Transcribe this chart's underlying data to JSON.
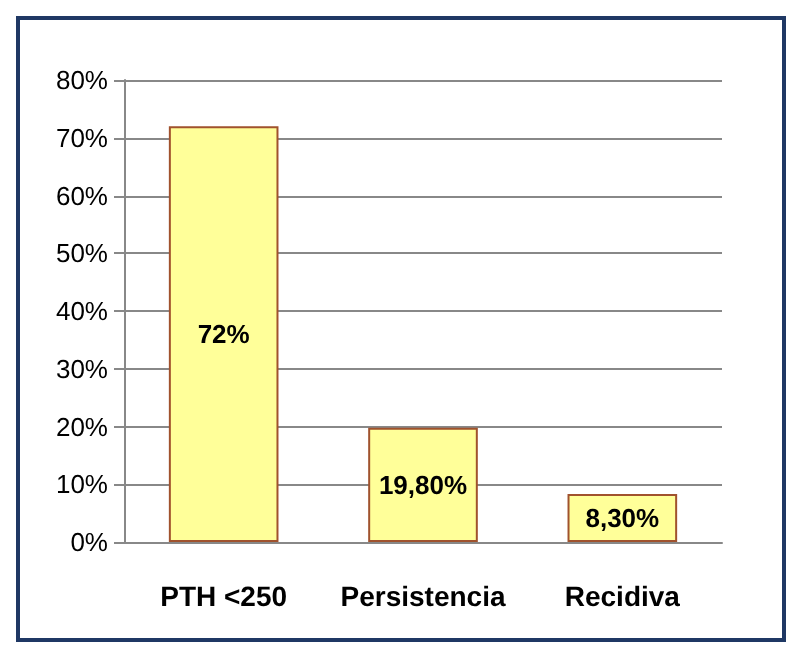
{
  "chart_data": {
    "type": "bar",
    "categories": [
      "PTH <250",
      "Persistencia",
      "Recidiva"
    ],
    "values": [
      72,
      19.8,
      8.3
    ],
    "value_labels": [
      "72%",
      "19,80%",
      "8,30%"
    ],
    "color": "#ffff99",
    "ylim": [
      0,
      80
    ],
    "yticks": [
      {
        "value": 0,
        "label": "0%"
      },
      {
        "value": 10,
        "label": "10%"
      },
      {
        "value": 20,
        "label": "20%"
      },
      {
        "value": 30,
        "label": "30%"
      },
      {
        "value": 40,
        "label": "40%"
      },
      {
        "value": 50,
        "label": "50%"
      },
      {
        "value": 60,
        "label": "60%"
      },
      {
        "value": 70,
        "label": "70%"
      },
      {
        "value": 80,
        "label": "80%"
      }
    ],
    "grid": "y"
  }
}
